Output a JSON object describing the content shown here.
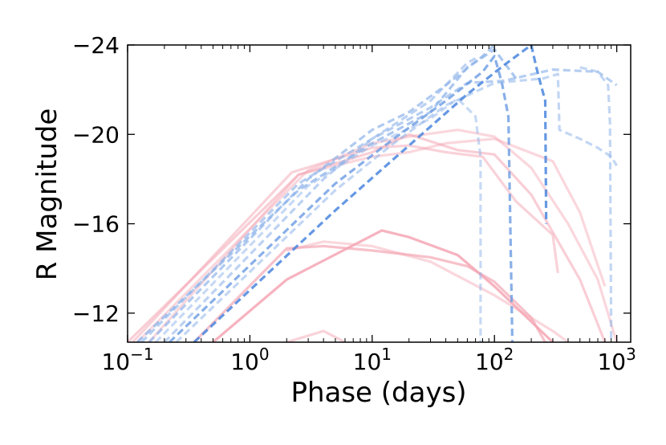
{
  "chart_data": {
    "type": "line",
    "xlabel": "Phase (days)",
    "ylabel": "R Magnitude",
    "xscale": "log",
    "xlim": [
      0.1,
      1300
    ],
    "ylim": [
      -10.7,
      -24
    ],
    "y_inverted": true,
    "grid": false,
    "x_ticks": [
      {
        "value": 0.1,
        "base": "10",
        "exp": "−1"
      },
      {
        "value": 1,
        "base": "10",
        "exp": "0"
      },
      {
        "value": 10,
        "base": "10",
        "exp": "1"
      },
      {
        "value": 100,
        "base": "10",
        "exp": "2"
      },
      {
        "value": 1000,
        "base": "10",
        "exp": "3"
      }
    ],
    "y_ticks": [
      {
        "value": -24,
        "label": "−24"
      },
      {
        "value": -20,
        "label": "−20"
      },
      {
        "value": -16,
        "label": "−16"
      },
      {
        "value": -12,
        "label": "−12"
      }
    ],
    "series": [
      {
        "name": "pink-1",
        "style": "solid",
        "color": "#f4a6b4",
        "opacity": 0.55,
        "points": [
          [
            0.1,
            -10.7
          ],
          [
            2.5,
            -18.2
          ],
          [
            10,
            -19.2
          ],
          [
            20,
            -20.0
          ],
          [
            50,
            -19.3
          ],
          [
            100,
            -19.1
          ],
          [
            200,
            -17.3
          ],
          [
            500,
            -13.5
          ],
          [
            800,
            -10.7
          ]
        ]
      },
      {
        "name": "pink-2",
        "style": "solid",
        "color": "#f4a6b4",
        "opacity": 0.45,
        "points": [
          [
            0.12,
            -10.7
          ],
          [
            3,
            -18.4
          ],
          [
            10,
            -19.6
          ],
          [
            20,
            -19.9
          ],
          [
            50,
            -20.2
          ],
          [
            100,
            -19.9
          ],
          [
            200,
            -18.5
          ],
          [
            400,
            -16.0
          ],
          [
            700,
            -13.5
          ],
          [
            1000,
            -10.7
          ]
        ]
      },
      {
        "name": "pink-3",
        "style": "solid",
        "color": "#f4a6b4",
        "opacity": 0.5,
        "points": [
          [
            0.11,
            -10.7
          ],
          [
            2.2,
            -18.3
          ],
          [
            10,
            -19.4
          ],
          [
            20,
            -19.5
          ],
          [
            40,
            -19.2
          ],
          [
            80,
            -19.0
          ],
          [
            150,
            -17.0
          ],
          [
            300,
            -15.5
          ],
          [
            330,
            -13.8
          ]
        ]
      },
      {
        "name": "pink-4",
        "style": "solid",
        "color": "#f4a6b4",
        "opacity": 0.45,
        "points": [
          [
            0.15,
            -10.7
          ],
          [
            2.5,
            -18.2
          ],
          [
            10,
            -19.0
          ],
          [
            20,
            -19.2
          ],
          [
            40,
            -19.6
          ],
          [
            100,
            -19.8
          ],
          [
            300,
            -18.8
          ],
          [
            500,
            -16.5
          ],
          [
            800,
            -13.2
          ]
        ]
      },
      {
        "name": "pink-5",
        "style": "solid",
        "color": "#f4a6b4",
        "opacity": 0.85,
        "points": [
          [
            0.5,
            -10.7
          ],
          [
            2,
            -13.5
          ],
          [
            12,
            -15.7
          ],
          [
            20,
            -15.4
          ],
          [
            50,
            -14.6
          ],
          [
            100,
            -13.2
          ],
          [
            300,
            -10.7
          ]
        ]
      },
      {
        "name": "pink-6",
        "style": "solid",
        "color": "#f4a6b4",
        "opacity": 0.7,
        "points": [
          [
            0.35,
            -10.7
          ],
          [
            2,
            -14.9
          ],
          [
            4,
            -15.0
          ],
          [
            10,
            -14.8
          ],
          [
            30,
            -14.5
          ],
          [
            60,
            -14.1
          ],
          [
            100,
            -13.4
          ],
          [
            200,
            -11.8
          ],
          [
            260,
            -10.7
          ]
        ]
      },
      {
        "name": "pink-7",
        "style": "solid",
        "color": "#f4a6b4",
        "opacity": 0.45,
        "points": [
          [
            2,
            -14.8
          ],
          [
            4,
            -15.2
          ],
          [
            10,
            -15.0
          ],
          [
            30,
            -14.3
          ],
          [
            100,
            -12.8
          ],
          [
            300,
            -11.2
          ],
          [
            400,
            -10.7
          ]
        ]
      },
      {
        "name": "pink-8",
        "style": "solid",
        "color": "#f4a6b4",
        "opacity": 0.5,
        "points": [
          [
            2,
            -10.7
          ],
          [
            4,
            -11.2
          ],
          [
            6,
            -10.7
          ]
        ]
      },
      {
        "name": "blue-1",
        "style": "dashed",
        "color": "#8fb4ea",
        "opacity": 0.75,
        "points": [
          [
            0.12,
            -10.7
          ],
          [
            2.5,
            -17.5
          ],
          [
            10,
            -19.6
          ],
          [
            30,
            -21.0
          ],
          [
            60,
            -23.0
          ],
          [
            100,
            -23.8
          ],
          [
            150,
            -22.5
          ]
        ]
      },
      {
        "name": "blue-2",
        "style": "dashed",
        "color": "#8fb4ea",
        "opacity": 0.65,
        "points": [
          [
            0.13,
            -10.7
          ],
          [
            2.5,
            -17.8
          ],
          [
            10,
            -19.8
          ],
          [
            30,
            -21.2
          ],
          [
            60,
            -22.3
          ],
          [
            120,
            -22.4
          ],
          [
            300,
            -22.9
          ],
          [
            700,
            -22.8
          ],
          [
            1000,
            -22.2
          ]
        ]
      },
      {
        "name": "blue-3",
        "style": "dashed",
        "color": "#8fb4ea",
        "opacity": 0.7,
        "points": [
          [
            0.15,
            -10.7
          ],
          [
            3,
            -18.0
          ],
          [
            10,
            -20.2
          ],
          [
            20,
            -21.0
          ],
          [
            40,
            -22.2
          ],
          [
            80,
            -23.5
          ],
          [
            100,
            -24.0
          ]
        ]
      },
      {
        "name": "blue-4",
        "style": "dashed",
        "color": "#8fb4ea",
        "opacity": 0.5,
        "points": [
          [
            0.17,
            -10.7
          ],
          [
            3,
            -17.7
          ],
          [
            10,
            -19.5
          ],
          [
            30,
            -20.7
          ],
          [
            50,
            -21.6
          ],
          [
            70,
            -20.8
          ],
          [
            77,
            -19.0
          ],
          [
            77,
            -10.7
          ]
        ]
      },
      {
        "name": "blue-5",
        "style": "dashed",
        "color": "#8fb4ea",
        "opacity": 0.6,
        "points": [
          [
            0.2,
            -10.7
          ],
          [
            4,
            -18.0
          ],
          [
            10,
            -19.8
          ],
          [
            30,
            -21.5
          ],
          [
            60,
            -23.2
          ],
          [
            70,
            -23.4
          ]
        ]
      },
      {
        "name": "blue-6",
        "style": "dashed",
        "color": "#6a9be2",
        "opacity": 0.8,
        "points": [
          [
            0.22,
            -10.7
          ],
          [
            5,
            -17.8
          ],
          [
            15,
            -19.8
          ],
          [
            40,
            -21.5
          ],
          [
            80,
            -22.8
          ],
          [
            100,
            -23.5
          ],
          [
            115,
            -22.3
          ],
          [
            130,
            -20.8
          ],
          [
            140,
            -10.7
          ]
        ]
      },
      {
        "name": "blue-7",
        "style": "dashed",
        "color": "#8fb4ea",
        "opacity": 0.55,
        "points": [
          [
            0.25,
            -10.7
          ],
          [
            5,
            -17.5
          ],
          [
            15,
            -19.6
          ],
          [
            40,
            -21.3
          ],
          [
            100,
            -22.3
          ],
          [
            250,
            -22.5
          ],
          [
            330,
            -22.7
          ],
          [
            340,
            -20.2
          ],
          [
            500,
            -19.8
          ],
          [
            700,
            -19.4
          ],
          [
            900,
            -19.0
          ],
          [
            1000,
            -18.6
          ]
        ]
      },
      {
        "name": "blue-8",
        "style": "dashed",
        "color": "#4a86de",
        "opacity": 0.85,
        "points": [
          [
            0.35,
            -10.7
          ],
          [
            5,
            -16.6
          ],
          [
            20,
            -19.5
          ],
          [
            60,
            -21.8
          ],
          [
            120,
            -23.1
          ],
          [
            200,
            -24.0
          ]
        ]
      },
      {
        "name": "blue-9",
        "style": "dashed",
        "color": "#4a86de",
        "opacity": 0.85,
        "points": [
          [
            200,
            -24.0
          ],
          [
            220,
            -23.0
          ],
          [
            240,
            -22.2
          ],
          [
            260,
            -21.5
          ],
          [
            265,
            -16.0
          ]
        ]
      },
      {
        "name": "blue-10",
        "style": "dashed",
        "color": "#8fb4ea",
        "opacity": 0.55,
        "points": [
          [
            500,
            -23.0
          ],
          [
            700,
            -22.8
          ],
          [
            850,
            -22.2
          ],
          [
            880,
            -20.5
          ],
          [
            900,
            -10.7
          ]
        ]
      }
    ]
  }
}
